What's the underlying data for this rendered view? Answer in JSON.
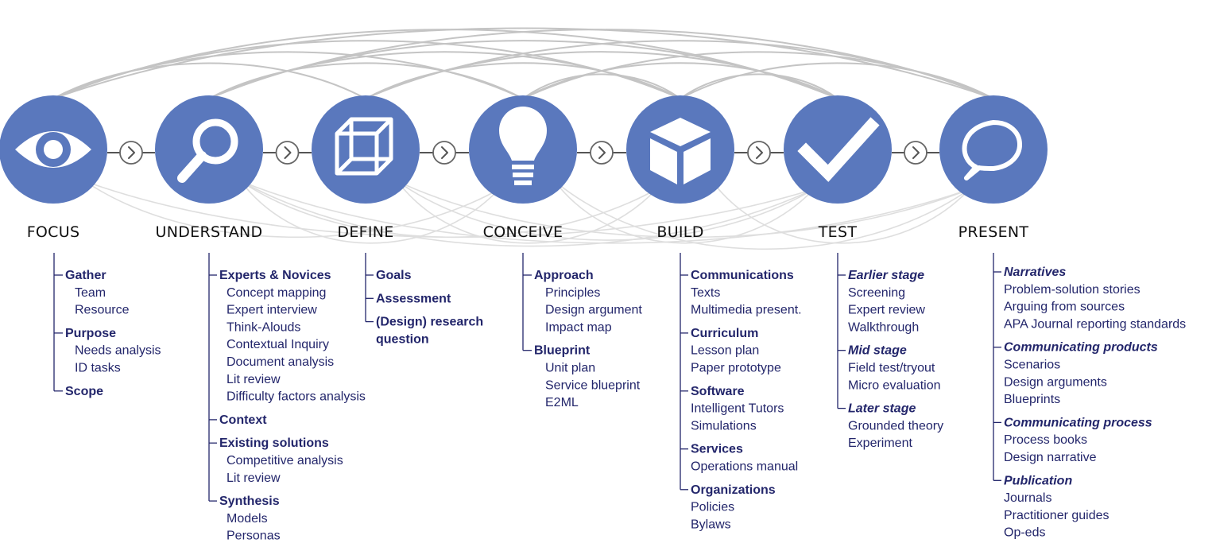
{
  "colors": {
    "stage_circle": "#5a78bd",
    "text_dark": "#23266b",
    "arc": "#c4c4c4",
    "chevron": "#555555"
  },
  "stages": [
    {
      "name": "FOCUS",
      "icon": "eye-icon",
      "items": [
        {
          "label": "Gather",
          "style": "bold",
          "subs": [
            "Team",
            "Resource"
          ]
        },
        {
          "label": "Purpose",
          "style": "bold",
          "subs": [
            "Needs analysis",
            "ID tasks"
          ]
        },
        {
          "label": "Scope",
          "style": "bold",
          "subs": []
        }
      ]
    },
    {
      "name": "UNDERSTAND",
      "icon": "magnifier-icon",
      "items": [
        {
          "label": "Experts & Novices",
          "style": "bold",
          "subs": [
            "Concept mapping",
            "Expert interview",
            "Think-Alouds",
            "Contextual Inquiry",
            "Document analysis",
            "Lit review",
            "Difficulty factors analysis"
          ]
        },
        {
          "label": "Context",
          "style": "bold",
          "subs": []
        },
        {
          "label": "Existing solutions",
          "style": "bold",
          "subs": [
            "Competitive analysis",
            "Lit review"
          ]
        },
        {
          "label": "Synthesis",
          "style": "bold",
          "subs": [
            "Models",
            "Personas"
          ]
        }
      ]
    },
    {
      "name": "DEFINE",
      "icon": "wireframe-cube-icon",
      "items": [
        {
          "label": "Goals",
          "style": "bold",
          "subs": []
        },
        {
          "label": "Assessment",
          "style": "bold",
          "subs": []
        },
        {
          "label": "(Design) research",
          "label2": "question",
          "style": "bold",
          "subs": []
        }
      ]
    },
    {
      "name": "CONCEIVE",
      "icon": "lightbulb-icon",
      "items": [
        {
          "label": "Approach",
          "style": "bold",
          "subs": [
            "Principles",
            "Design argument",
            "Impact map"
          ]
        },
        {
          "label": "Blueprint",
          "style": "bold",
          "subs": [
            "Unit plan",
            "Service blueprint",
            "E2ML"
          ]
        }
      ]
    },
    {
      "name": "BUILD",
      "icon": "box-icon",
      "items": [
        {
          "label": "Communications",
          "style": "bold",
          "subs": [
            "Texts",
            "Multimedia present."
          ]
        },
        {
          "label": "Curriculum",
          "style": "bold",
          "subs": [
            "Lesson plan",
            "Paper prototype"
          ]
        },
        {
          "label": "Software",
          "style": "bold",
          "subs": [
            "Intelligent Tutors",
            "Simulations"
          ]
        },
        {
          "label": "Services",
          "style": "bold",
          "subs": [
            "Operations manual"
          ]
        },
        {
          "label": "Organizations",
          "style": "bold",
          "subs": [
            "Policies",
            "Bylaws"
          ]
        }
      ]
    },
    {
      "name": "TEST",
      "icon": "checkmark-icon",
      "items": [
        {
          "label": "Earlier stage",
          "style": "italic",
          "subs": [
            "Screening",
            "Expert review",
            "Walkthrough"
          ]
        },
        {
          "label": "Mid stage",
          "style": "italic",
          "subs": [
            "Field test/tryout",
            "Micro evaluation"
          ]
        },
        {
          "label": "Later stage",
          "style": "italic",
          "subs": [
            "Grounded theory",
            "Experiment"
          ]
        }
      ]
    },
    {
      "name": "PRESENT",
      "icon": "speech-bubble-icon",
      "items": [
        {
          "label": "Narratives",
          "style": "italic",
          "subs": [
            "Problem-solution stories",
            "Arguing from sources",
            "APA Journal reporting standards"
          ]
        },
        {
          "label": "Communicating products",
          "style": "italic",
          "subs": [
            "Scenarios",
            "Design arguments",
            "Blueprints"
          ]
        },
        {
          "label": "Communicating process",
          "style": "italic",
          "subs": [
            "Process books",
            "Design narrative"
          ]
        },
        {
          "label": "Publication",
          "style": "italic",
          "subs": [
            "Journals",
            "Practitioner guides",
            "Op-eds"
          ]
        }
      ]
    }
  ]
}
